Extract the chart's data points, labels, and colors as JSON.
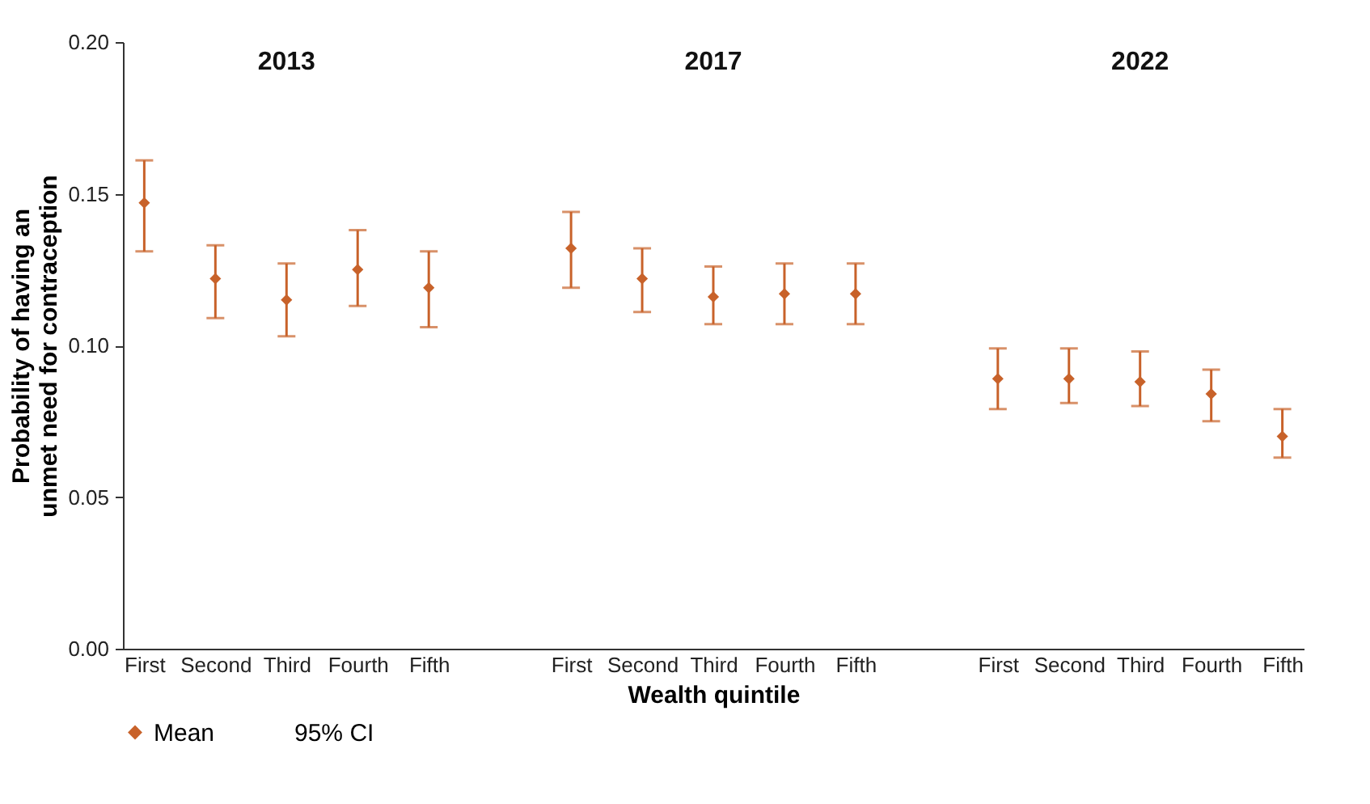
{
  "chart_data": {
    "type": "scatter",
    "xlabel": "Wealth quintile",
    "ylabel": "Probability of having an unmet need for contraception",
    "categories": [
      "First",
      "Second",
      "Third",
      "Fourth",
      "Fifth",
      null,
      "First",
      "Second",
      "Third",
      "Fourth",
      "Fifth",
      null,
      "First",
      "Second",
      "Third",
      "Fourth",
      "Fifth"
    ],
    "series": [
      {
        "name": "Mean",
        "color": "#c8622a",
        "values": [
          0.147,
          0.122,
          0.115,
          0.125,
          0.119,
          null,
          0.132,
          0.122,
          0.116,
          0.117,
          0.117,
          null,
          0.089,
          0.089,
          0.088,
          0.084,
          0.07
        ],
        "errors": [
          [
            0.131,
            0.161
          ],
          [
            0.109,
            0.133
          ],
          [
            0.103,
            0.127
          ],
          [
            0.113,
            0.138
          ],
          [
            0.106,
            0.131
          ],
          null,
          [
            0.119,
            0.144
          ],
          [
            0.111,
            0.132
          ],
          [
            0.107,
            0.126
          ],
          [
            0.107,
            0.127
          ],
          [
            0.107,
            0.127
          ],
          null,
          [
            0.079,
            0.099
          ],
          [
            0.081,
            0.099
          ],
          [
            0.08,
            0.098
          ],
          [
            0.075,
            0.092
          ],
          [
            0.063,
            0.079
          ]
        ]
      }
    ],
    "annotations": [
      "2013",
      "2017",
      "2022",
      "95% CI"
    ],
    "ylim": [
      0,
      0.2
    ],
    "yticks": [
      {
        "value": 0,
        "label": "0.00"
      },
      {
        "value": 0.05,
        "label": "0.05"
      },
      {
        "value": 0.1,
        "label": "0.10"
      },
      {
        "value": 0.15,
        "label": "0.15"
      },
      {
        "value": 0.2,
        "label": "0.20"
      }
    ],
    "grid": false,
    "legend": "bottom left",
    "marker": "diamond"
  }
}
